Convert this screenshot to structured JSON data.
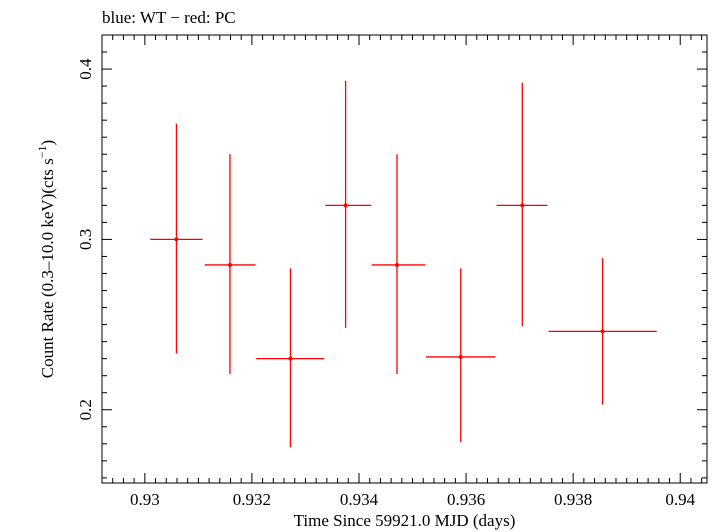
{
  "chart_data": {
    "type": "scatter",
    "title": "blue: WT − red: PC",
    "xlabel": "Time Since 59921.0 MJD (days)",
    "ylabel_main": "Count Rate (0.3–10.0 keV)(cts s",
    "ylabel_sup": "−1",
    "ylabel_close": ")",
    "xlim": [
      0.9292,
      0.9405
    ],
    "ylim": [
      0.157,
      0.42
    ],
    "x_ticks": [
      0.93,
      0.932,
      0.934,
      0.936,
      0.938,
      0.94
    ],
    "x_tick_labels": [
      "0.93",
      "0.932",
      "0.934",
      "0.936",
      "0.938",
      "0.94"
    ],
    "y_ticks": [
      0.2,
      0.3,
      0.4
    ],
    "y_tick_labels": [
      "0.2",
      "0.3",
      "0.4"
    ],
    "series": [
      {
        "color": "#ff0000",
        "points": [
          {
            "x": 0.93059,
            "xlo": 0.9301,
            "xhi": 0.93108,
            "y": 0.3,
            "ylo": 0.233,
            "yhi": 0.368
          },
          {
            "x": 0.93159,
            "xlo": 0.93112,
            "xhi": 0.93207,
            "y": 0.285,
            "ylo": 0.221,
            "yhi": 0.35
          },
          {
            "x": 0.93272,
            "xlo": 0.93208,
            "xhi": 0.93335,
            "y": 0.23,
            "ylo": 0.178,
            "yhi": 0.283
          },
          {
            "x": 0.93375,
            "xlo": 0.93337,
            "xhi": 0.93423,
            "y": 0.32,
            "ylo": 0.248,
            "yhi": 0.393
          },
          {
            "x": 0.93471,
            "xlo": 0.93424,
            "xhi": 0.93524,
            "y": 0.285,
            "ylo": 0.221,
            "yhi": 0.35
          },
          {
            "x": 0.9359,
            "xlo": 0.93525,
            "xhi": 0.93655,
            "y": 0.231,
            "ylo": 0.181,
            "yhi": 0.283
          },
          {
            "x": 0.93705,
            "xlo": 0.93657,
            "xhi": 0.93752,
            "y": 0.32,
            "ylo": 0.249,
            "yhi": 0.392
          },
          {
            "x": 0.93855,
            "xlo": 0.93754,
            "xhi": 0.93956,
            "y": 0.246,
            "ylo": 0.203,
            "yhi": 0.289
          }
        ]
      }
    ]
  }
}
